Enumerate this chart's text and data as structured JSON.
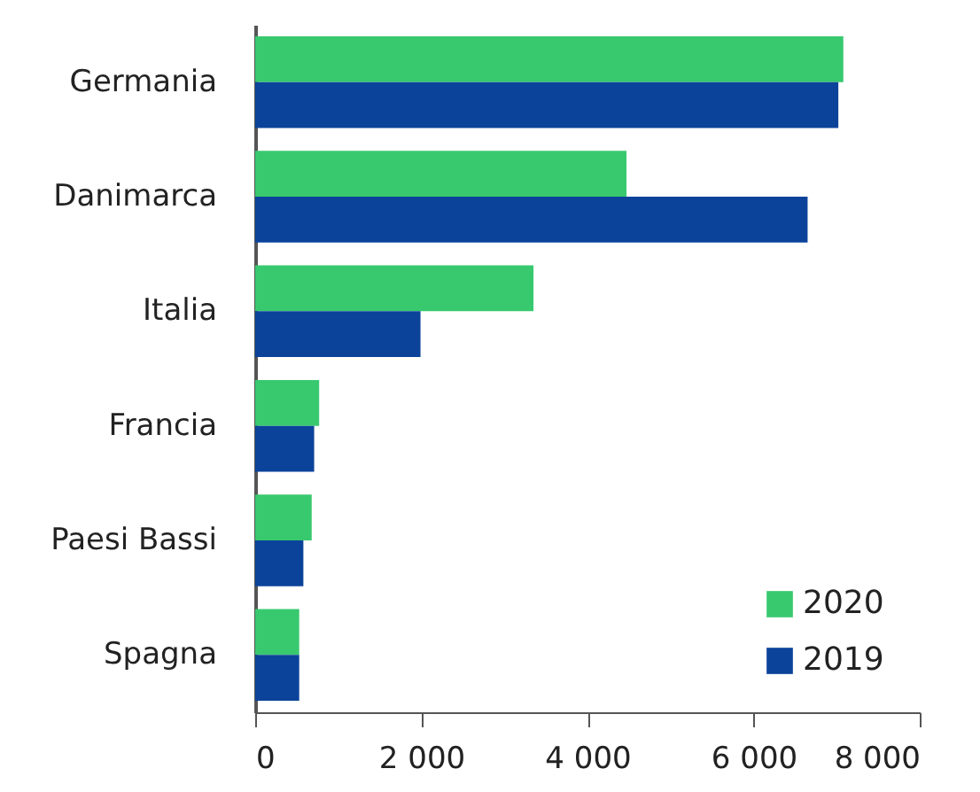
{
  "chart_data": {
    "type": "bar",
    "orientation": "horizontal",
    "categories": [
      "Germania",
      "Danimarca",
      "Italia",
      "Francia",
      "Paesi Bassi",
      "Spagna"
    ],
    "series": [
      {
        "name": "2020",
        "color": "#38c96f",
        "values": [
          7080,
          4470,
          3350,
          770,
          680,
          530
        ]
      },
      {
        "name": "2019",
        "color": "#0b439a",
        "values": [
          7020,
          6650,
          1990,
          710,
          580,
          530
        ]
      }
    ],
    "xlim": [
      0,
      8000
    ],
    "xticks": [
      0,
      {
        "value": 2000,
        "label": "2 000"
      },
      {
        "value": 4000,
        "label": "4 000"
      },
      {
        "value": 6000,
        "label": "6 000"
      },
      {
        "value": 8000,
        "label": "8 000"
      }
    ],
    "grid": false,
    "legend": "bottom right"
  }
}
